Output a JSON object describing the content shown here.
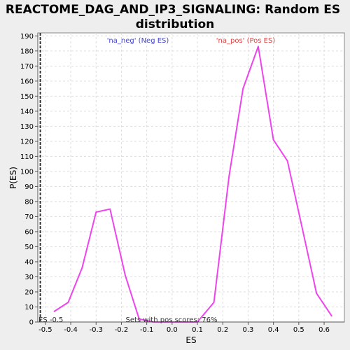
{
  "chart_data": {
    "type": "line",
    "title_lines": [
      "REACTOME_DAG_AND_IP3_SIGNALING: Random ES",
      "distribution"
    ],
    "xlabel": "ES",
    "ylabel": "P(ES)",
    "xlim": [
      -0.53,
      0.68
    ],
    "ylim": [
      0,
      192
    ],
    "x_ticks": [
      -0.5,
      -0.4,
      -0.3,
      -0.2,
      -0.1,
      0.0,
      0.1,
      0.2,
      0.3,
      0.4,
      0.5,
      0.6
    ],
    "x_tick_labels": [
      "-0.5",
      "-0.4",
      "-0.3",
      "-0.2",
      "-0.1",
      "0.0",
      "0.1",
      "0.2",
      "0.3",
      "0.4",
      "0.5",
      "0.6"
    ],
    "y_ticks": [
      0,
      10,
      20,
      30,
      40,
      50,
      60,
      70,
      80,
      90,
      100,
      110,
      120,
      130,
      140,
      150,
      160,
      170,
      180,
      190
    ],
    "grid": true,
    "series": [
      {
        "name": "Random ES distribution",
        "color": "#ee44ee",
        "x": [
          -0.465,
          -0.41,
          -0.355,
          -0.3,
          -0.245,
          -0.185,
          -0.13,
          -0.075,
          -0.02,
          0.04,
          0.1,
          0.165,
          0.225,
          0.28,
          0.34,
          0.4,
          0.455,
          0.51,
          0.57,
          0.63
        ],
        "y": [
          7,
          13,
          36,
          73,
          75,
          31,
          2,
          0,
          0,
          0,
          0,
          13,
          97,
          155,
          183,
          121,
          107,
          65,
          19,
          4
        ]
      }
    ],
    "es_line": {
      "value": -0.52,
      "label": "ES -0.5",
      "color": "#333333"
    },
    "annotations": {
      "neg": {
        "text": "'na_neg' (Neg ES)",
        "color": "#4444cc"
      },
      "pos": {
        "text": "'na_pos' (Pos ES)",
        "color": "#dd4444"
      },
      "footer": {
        "text": "Sets with pos scores: 76%",
        "color": "#333333"
      }
    }
  }
}
